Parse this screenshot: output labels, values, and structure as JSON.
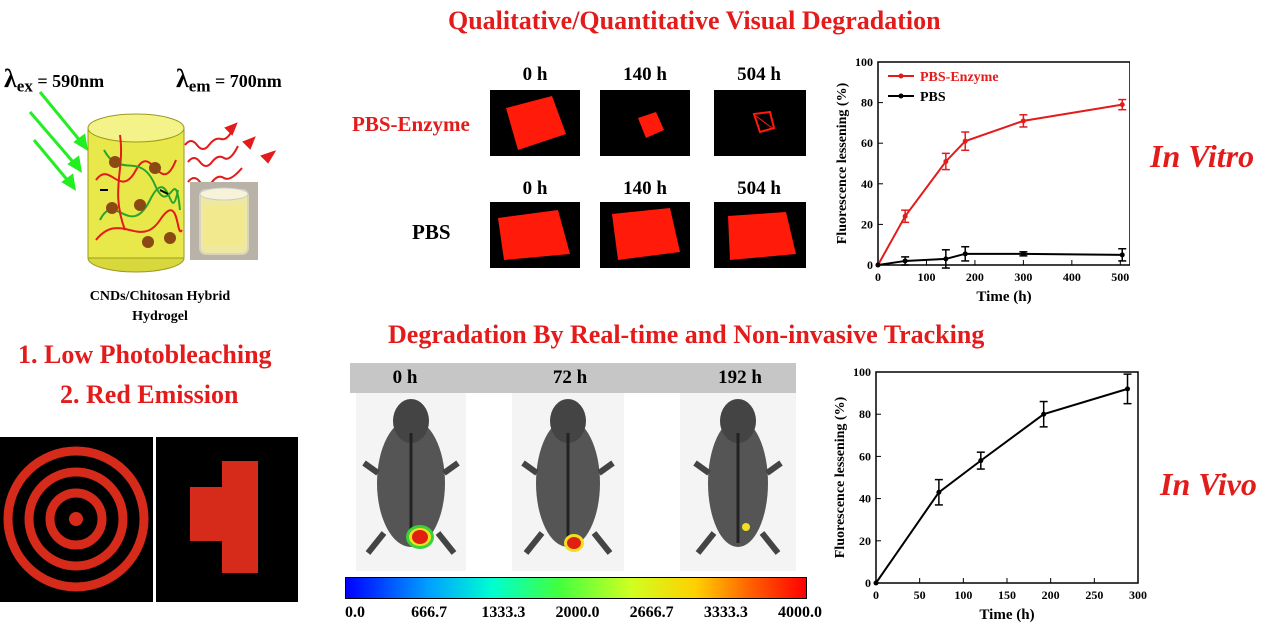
{
  "titles": {
    "top": "Qualitative/Quantitative Visual Degradation",
    "middle": "Degradation By Real-time and Non-invasive Tracking"
  },
  "schematic": {
    "lambda_ex": "λ",
    "lambda_ex_sub": "ex",
    "lambda_ex_value": " = 590nm",
    "lambda_em": "λ",
    "lambda_em_sub": "em",
    "lambda_em_value": " = 700nm",
    "caption_line1": "CNDs/Chitosan Hybrid",
    "caption_line2": "Hydrogel"
  },
  "features": [
    "1. Low Photobleaching",
    "2. Red Emission"
  ],
  "in_vitro_panel": {
    "row_labels": [
      "PBS-Enzyme",
      "PBS"
    ],
    "time_labels": [
      "0 h",
      "140 h",
      "504 h"
    ],
    "side_label": "In Vitro"
  },
  "in_vivo_panel": {
    "time_labels": [
      "0 h",
      "72 h",
      "192 h"
    ],
    "side_label": "In Vivo",
    "colorbar_ticks": [
      "0.0",
      "666.7",
      "1333.3",
      "2000.0",
      "2666.7",
      "3333.3",
      "4000.0"
    ]
  },
  "chart_data": [
    {
      "type": "line",
      "xlabel": "Time (h)",
      "ylabel": "Fluorescence lessening (%)",
      "xlim": [
        0,
        520
      ],
      "ylim": [
        0,
        100
      ],
      "xticks": [
        0,
        100,
        200,
        300,
        400,
        500
      ],
      "yticks": [
        0,
        20,
        40,
        60,
        80,
        100
      ],
      "legend_position": "top-left",
      "series": [
        {
          "name": "PBS-Enzyme",
          "color": "#e31b1b",
          "x": [
            0,
            56,
            140,
            180,
            300,
            504
          ],
          "y": [
            0,
            24,
            51,
            61,
            71,
            79
          ],
          "err": [
            0,
            3,
            4,
            4.5,
            3,
            2.5
          ]
        },
        {
          "name": "PBS",
          "color": "#000000",
          "x": [
            0,
            56,
            140,
            180,
            300,
            504
          ],
          "y": [
            0,
            2,
            3,
            5.5,
            5.5,
            5
          ],
          "err": [
            0,
            2,
            4.5,
            3.5,
            1,
            3
          ]
        }
      ]
    },
    {
      "type": "line",
      "xlabel": "Time (h)",
      "ylabel": "Fluorescence lessening (%)",
      "xlim": [
        0,
        300
      ],
      "ylim": [
        0,
        100
      ],
      "xticks": [
        0,
        50,
        100,
        150,
        200,
        250,
        300
      ],
      "yticks": [
        0,
        20,
        40,
        60,
        80,
        100
      ],
      "series": [
        {
          "color": "#000000",
          "x": [
            0,
            72,
            120,
            192,
            288
          ],
          "y": [
            0,
            43,
            58,
            80,
            92
          ],
          "err": [
            0,
            6,
            4,
            6,
            7
          ]
        }
      ]
    }
  ]
}
